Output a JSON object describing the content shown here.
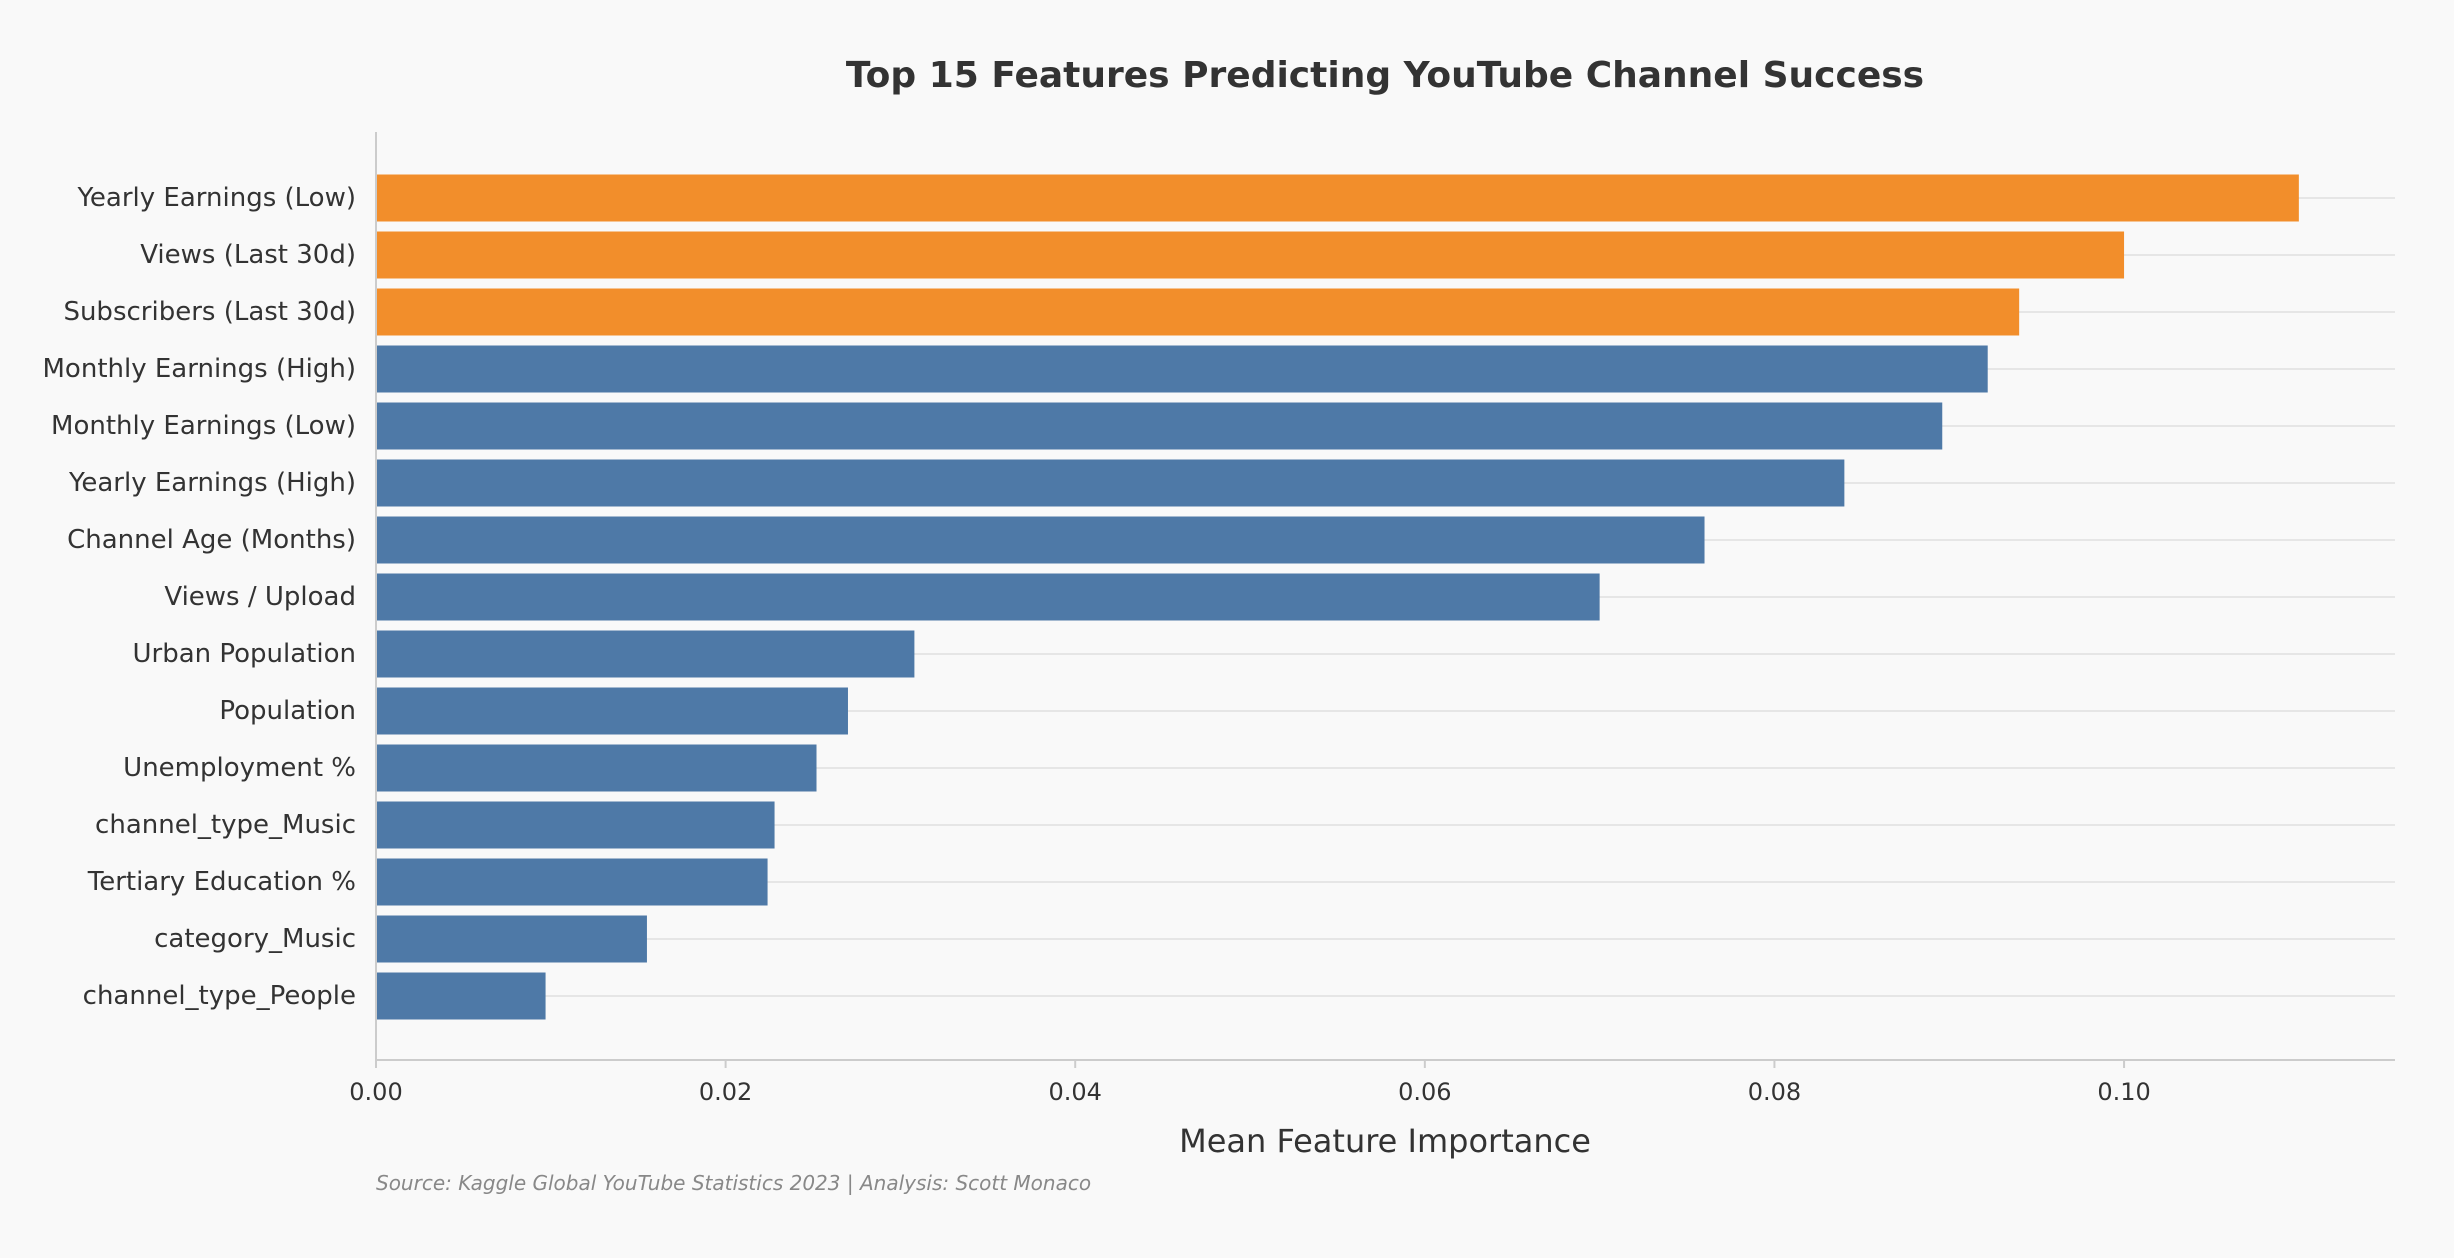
{
  "chart_data": {
    "type": "bar",
    "orientation": "horizontal",
    "title": "Top 15 Features Predicting YouTube Channel Success",
    "xlabel": "Mean Feature Importance",
    "ylabel": "",
    "xlim": [
      0,
      0.1155
    ],
    "xticks": [
      "0.00",
      "0.02",
      "0.04",
      "0.06",
      "0.08",
      "0.10"
    ],
    "grid": "horizontal",
    "source_note": "Source: Kaggle Global YouTube Statistics 2023 | Analysis: Scott Monaco",
    "colors": {
      "highlight": "#f28e2b",
      "default": "#4e79a7",
      "background": "#f9f9f9",
      "text": "#333333",
      "axis": "#cccccc",
      "grid": "#e6e6e6",
      "note": "#888888"
    },
    "highlight_top_n": 3,
    "categories": [
      "Yearly Earnings (Low)",
      "Views (Last 30d)",
      "Subscribers (Last 30d)",
      "Monthly Earnings (High)",
      "Monthly Earnings (Low)",
      "Yearly Earnings (High)",
      "Channel Age (Months)",
      "Views / Upload",
      "Urban Population",
      "Population",
      "Unemployment %",
      "channel_type_Music",
      "Tertiary Education %",
      "category_Music",
      "channel_type_People"
    ],
    "values": [
      0.11,
      0.1,
      0.094,
      0.0922,
      0.0896,
      0.084,
      0.076,
      0.07,
      0.0308,
      0.027,
      0.0252,
      0.0228,
      0.0224,
      0.0155,
      0.0097
    ]
  }
}
